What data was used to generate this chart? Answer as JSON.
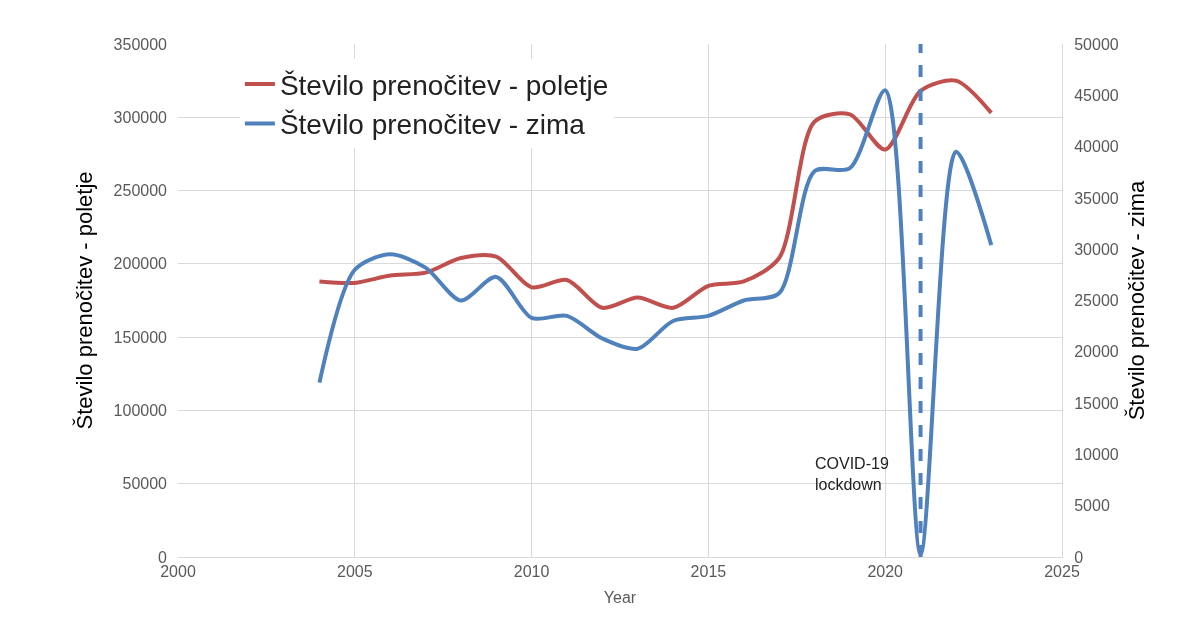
{
  "chart_data": {
    "type": "line",
    "xlabel": "Year",
    "ylabel": "Število prenočitev - poletje",
    "y2label": "Število prenočitev - zima",
    "x": [
      2004,
      2005,
      2006,
      2007,
      2008,
      2009,
      2010,
      2011,
      2012,
      2013,
      2014,
      2015,
      2016,
      2017,
      2018,
      2019,
      2020,
      2021,
      2022,
      2023
    ],
    "series": [
      {
        "name": "Število prenočitev - poletje",
        "color": "#c0504d",
        "values": [
          188000,
          187000,
          192000,
          194000,
          204000,
          205000,
          184000,
          189000,
          170000,
          177000,
          170000,
          185000,
          188000,
          204000,
          297000,
          302000,
          278000,
          318000,
          325000,
          303000
        ]
      },
      {
        "name": "Število prenočitev - zima",
        "color": "#4f81bd",
        "axis": "y2",
        "values": [
          17000,
          28000,
          29500,
          28200,
          25000,
          27300,
          23300,
          23500,
          21300,
          20300,
          23000,
          23500,
          25000,
          25700,
          37600,
          37900,
          45500,
          300,
          39500,
          30400
        ]
      }
    ],
    "xlim": [
      2000,
      2025
    ],
    "xticks": [
      2000,
      2005,
      2010,
      2015,
      2020,
      2025
    ],
    "ylim": [
      0,
      350000
    ],
    "yticks": [
      0,
      50000,
      100000,
      150000,
      200000,
      250000,
      300000,
      350000
    ],
    "y2lim": [
      0,
      50000
    ],
    "y2ticks": [
      0,
      5000,
      10000,
      15000,
      20000,
      25000,
      30000,
      35000,
      40000,
      45000,
      50000
    ],
    "ref_lines": [
      {
        "axis": "x",
        "value": 2021,
        "label": "COVID-19\nlockdown",
        "color": "#4f81bd",
        "line_style": "dashed"
      }
    ],
    "grid": true,
    "legend": "top left",
    "marker": "none",
    "line_style": "solid"
  }
}
